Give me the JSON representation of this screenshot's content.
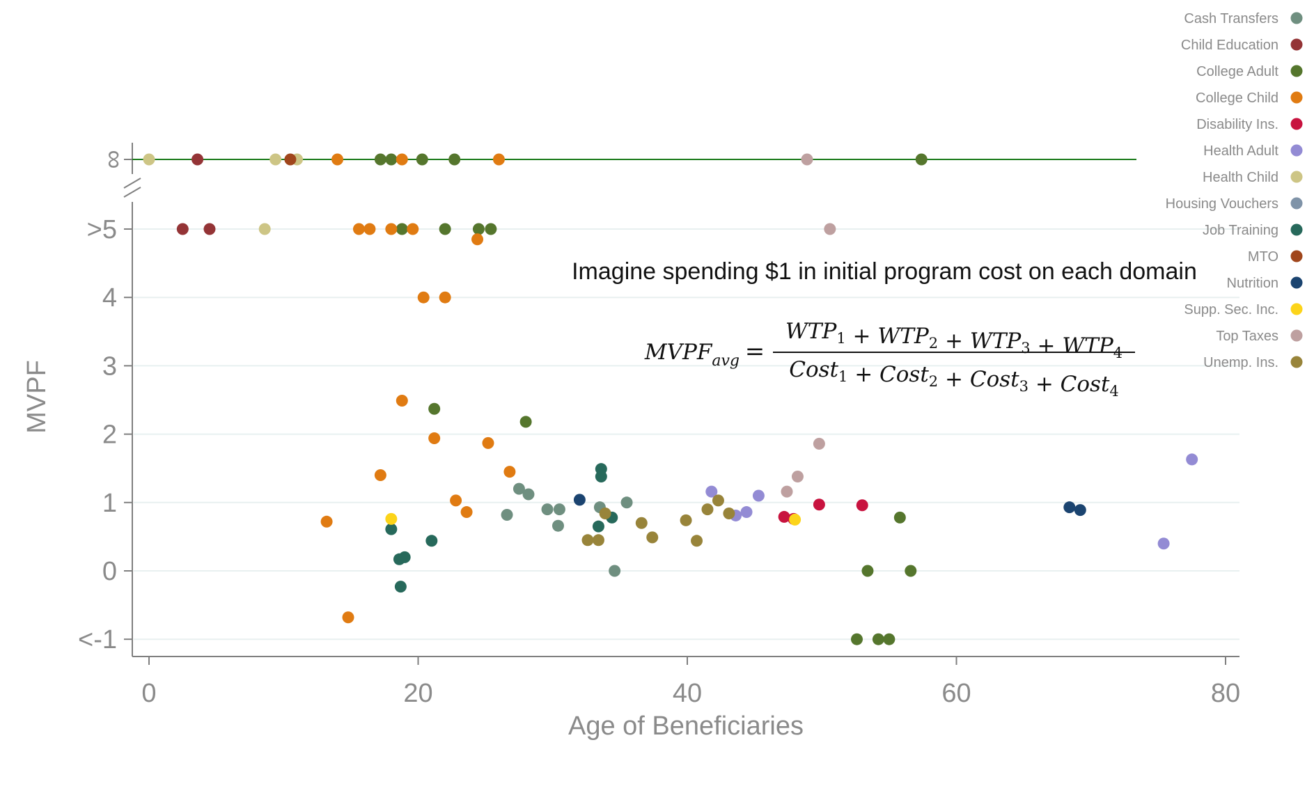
{
  "chart_data": {
    "type": "scatter",
    "xlabel": "Age of Beneficiaries",
    "ylabel": "MVPF",
    "xlim": [
      -1.5,
      81.5
    ],
    "x_ticks": [
      0,
      20,
      40,
      60,
      80
    ],
    "y_ticks": [
      {
        "label": "<-1",
        "value": -1
      },
      {
        "label": "0",
        "value": 0
      },
      {
        "label": "1",
        "value": 1
      },
      {
        "label": "2",
        "value": 2
      },
      {
        "label": "3",
        "value": 3
      },
      {
        "label": "4",
        "value": 4
      },
      {
        "label": ">5",
        "value": 5
      },
      {
        "label": "∞",
        "value": "inf"
      }
    ],
    "grid": true,
    "legend_position": "top-right",
    "annotation": "Imagine spending $1 in initial program cost on each domain",
    "formula": {
      "lhs": "MVPF",
      "lhs_sub": "avg",
      "equals": "=",
      "numerator": [
        {
          "base": "WTP",
          "sub": "1"
        },
        {
          "base": "WTP",
          "sub": "2"
        },
        {
          "base": "WTP",
          "sub": "3"
        },
        {
          "base": "WTP",
          "sub": "4"
        }
      ],
      "denominator": [
        {
          "base": "Cost",
          "sub": "1"
        },
        {
          "base": "Cost",
          "sub": "2"
        },
        {
          "base": "Cost",
          "sub": "3"
        },
        {
          "base": "Cost",
          "sub": "4"
        }
      ],
      "plus": "+"
    },
    "series": [
      {
        "name": "Cash Transfers",
        "color": "#6f8f80",
        "points": [
          [
            27.5,
            1.2
          ],
          [
            28.2,
            1.12
          ],
          [
            26.6,
            0.82
          ],
          [
            29.6,
            0.9
          ],
          [
            30.4,
            0.66
          ],
          [
            30.5,
            0.9
          ],
          [
            33.5,
            0.93
          ],
          [
            35.5,
            1.0
          ],
          [
            34.6,
            0.0
          ]
        ]
      },
      {
        "name": "Child Education",
        "color": "#943436",
        "points": [
          [
            2.5,
            5
          ],
          [
            4.5,
            5
          ],
          [
            3.6,
            "inf"
          ]
        ]
      },
      {
        "name": "College Adult",
        "color": "#55762d",
        "points": [
          [
            18.8,
            5
          ],
          [
            22.0,
            5
          ],
          [
            24.5,
            5
          ],
          [
            25.4,
            5
          ],
          [
            17.2,
            "inf"
          ],
          [
            18.0,
            "inf"
          ],
          [
            20.3,
            "inf"
          ],
          [
            22.7,
            "inf"
          ],
          [
            57.4,
            "inf"
          ],
          [
            21.2,
            2.37
          ],
          [
            28.0,
            2.18
          ],
          [
            55.8,
            0.78
          ],
          [
            53.4,
            0.0
          ],
          [
            56.6,
            0.0
          ],
          [
            52.6,
            -1
          ],
          [
            54.2,
            -1
          ],
          [
            55.0,
            -1
          ]
        ]
      },
      {
        "name": "College Child",
        "color": "#e07b12",
        "points": [
          [
            15.6,
            5
          ],
          [
            16.4,
            5
          ],
          [
            18.0,
            5
          ],
          [
            19.6,
            5
          ],
          [
            24.4,
            4.85
          ],
          [
            20.4,
            4.0
          ],
          [
            22.0,
            4.0
          ],
          [
            14.0,
            "inf"
          ],
          [
            18.8,
            "inf"
          ],
          [
            26.0,
            "inf"
          ],
          [
            18.8,
            2.49
          ],
          [
            21.2,
            1.94
          ],
          [
            25.2,
            1.87
          ],
          [
            17.2,
            1.4
          ],
          [
            26.8,
            1.45
          ],
          [
            22.8,
            1.03
          ],
          [
            23.6,
            0.86
          ],
          [
            13.2,
            0.72
          ],
          [
            14.8,
            -0.68
          ]
        ]
      },
      {
        "name": "Disability Ins.",
        "color": "#c8133f",
        "points": [
          [
            47.2,
            0.79
          ],
          [
            49.8,
            0.97
          ],
          [
            53.0,
            0.96
          ],
          [
            47.9,
            0.76
          ]
        ]
      },
      {
        "name": "Health Adult",
        "color": "#938bd4",
        "points": [
          [
            41.8,
            1.16
          ],
          [
            43.6,
            0.81
          ],
          [
            44.4,
            0.86
          ],
          [
            45.3,
            1.1
          ],
          [
            77.5,
            1.63
          ],
          [
            75.4,
            0.4
          ]
        ]
      },
      {
        "name": "Health Child",
        "color": "#cdc585",
        "points": [
          [
            8.6,
            5
          ],
          [
            0.0,
            "inf"
          ],
          [
            9.4,
            "inf"
          ],
          [
            11.0,
            "inf"
          ]
        ]
      },
      {
        "name": "Housing Vouchers",
        "color": "#7f93a8",
        "points": []
      },
      {
        "name": "Job Training",
        "color": "#27695b",
        "points": [
          [
            18.0,
            0.61
          ],
          [
            18.6,
            0.17
          ],
          [
            19.0,
            0.2
          ],
          [
            18.7,
            -0.23
          ],
          [
            21.0,
            0.44
          ],
          [
            33.6,
            1.49
          ],
          [
            33.6,
            1.38
          ],
          [
            33.4,
            0.65
          ],
          [
            34.4,
            0.78
          ]
        ]
      },
      {
        "name": "MTO",
        "color": "#a0461c",
        "points": [
          [
            10.5,
            "inf"
          ]
        ]
      },
      {
        "name": "Nutrition",
        "color": "#1b4470",
        "points": [
          [
            32.0,
            1.04
          ],
          [
            68.4,
            0.93
          ],
          [
            69.2,
            0.89
          ]
        ]
      },
      {
        "name": "Supp. Sec. Inc.",
        "color": "#fcd41a",
        "points": [
          [
            18.0,
            0.76
          ],
          [
            48.0,
            0.75
          ]
        ]
      },
      {
        "name": "Top Taxes",
        "color": "#bea0a0",
        "points": [
          [
            50.6,
            5
          ],
          [
            48.9,
            "inf"
          ],
          [
            49.8,
            1.86
          ],
          [
            48.2,
            1.38
          ],
          [
            47.4,
            1.16
          ]
        ]
      },
      {
        "name": "Unemp. Ins.",
        "color": "#98843a",
        "points": [
          [
            32.6,
            0.45
          ],
          [
            33.4,
            0.45
          ],
          [
            33.9,
            0.84
          ],
          [
            36.6,
            0.7
          ],
          [
            37.4,
            0.49
          ],
          [
            39.9,
            0.74
          ],
          [
            40.7,
            0.44
          ],
          [
            41.5,
            0.9
          ],
          [
            42.3,
            1.03
          ],
          [
            43.1,
            0.84
          ]
        ]
      }
    ]
  }
}
